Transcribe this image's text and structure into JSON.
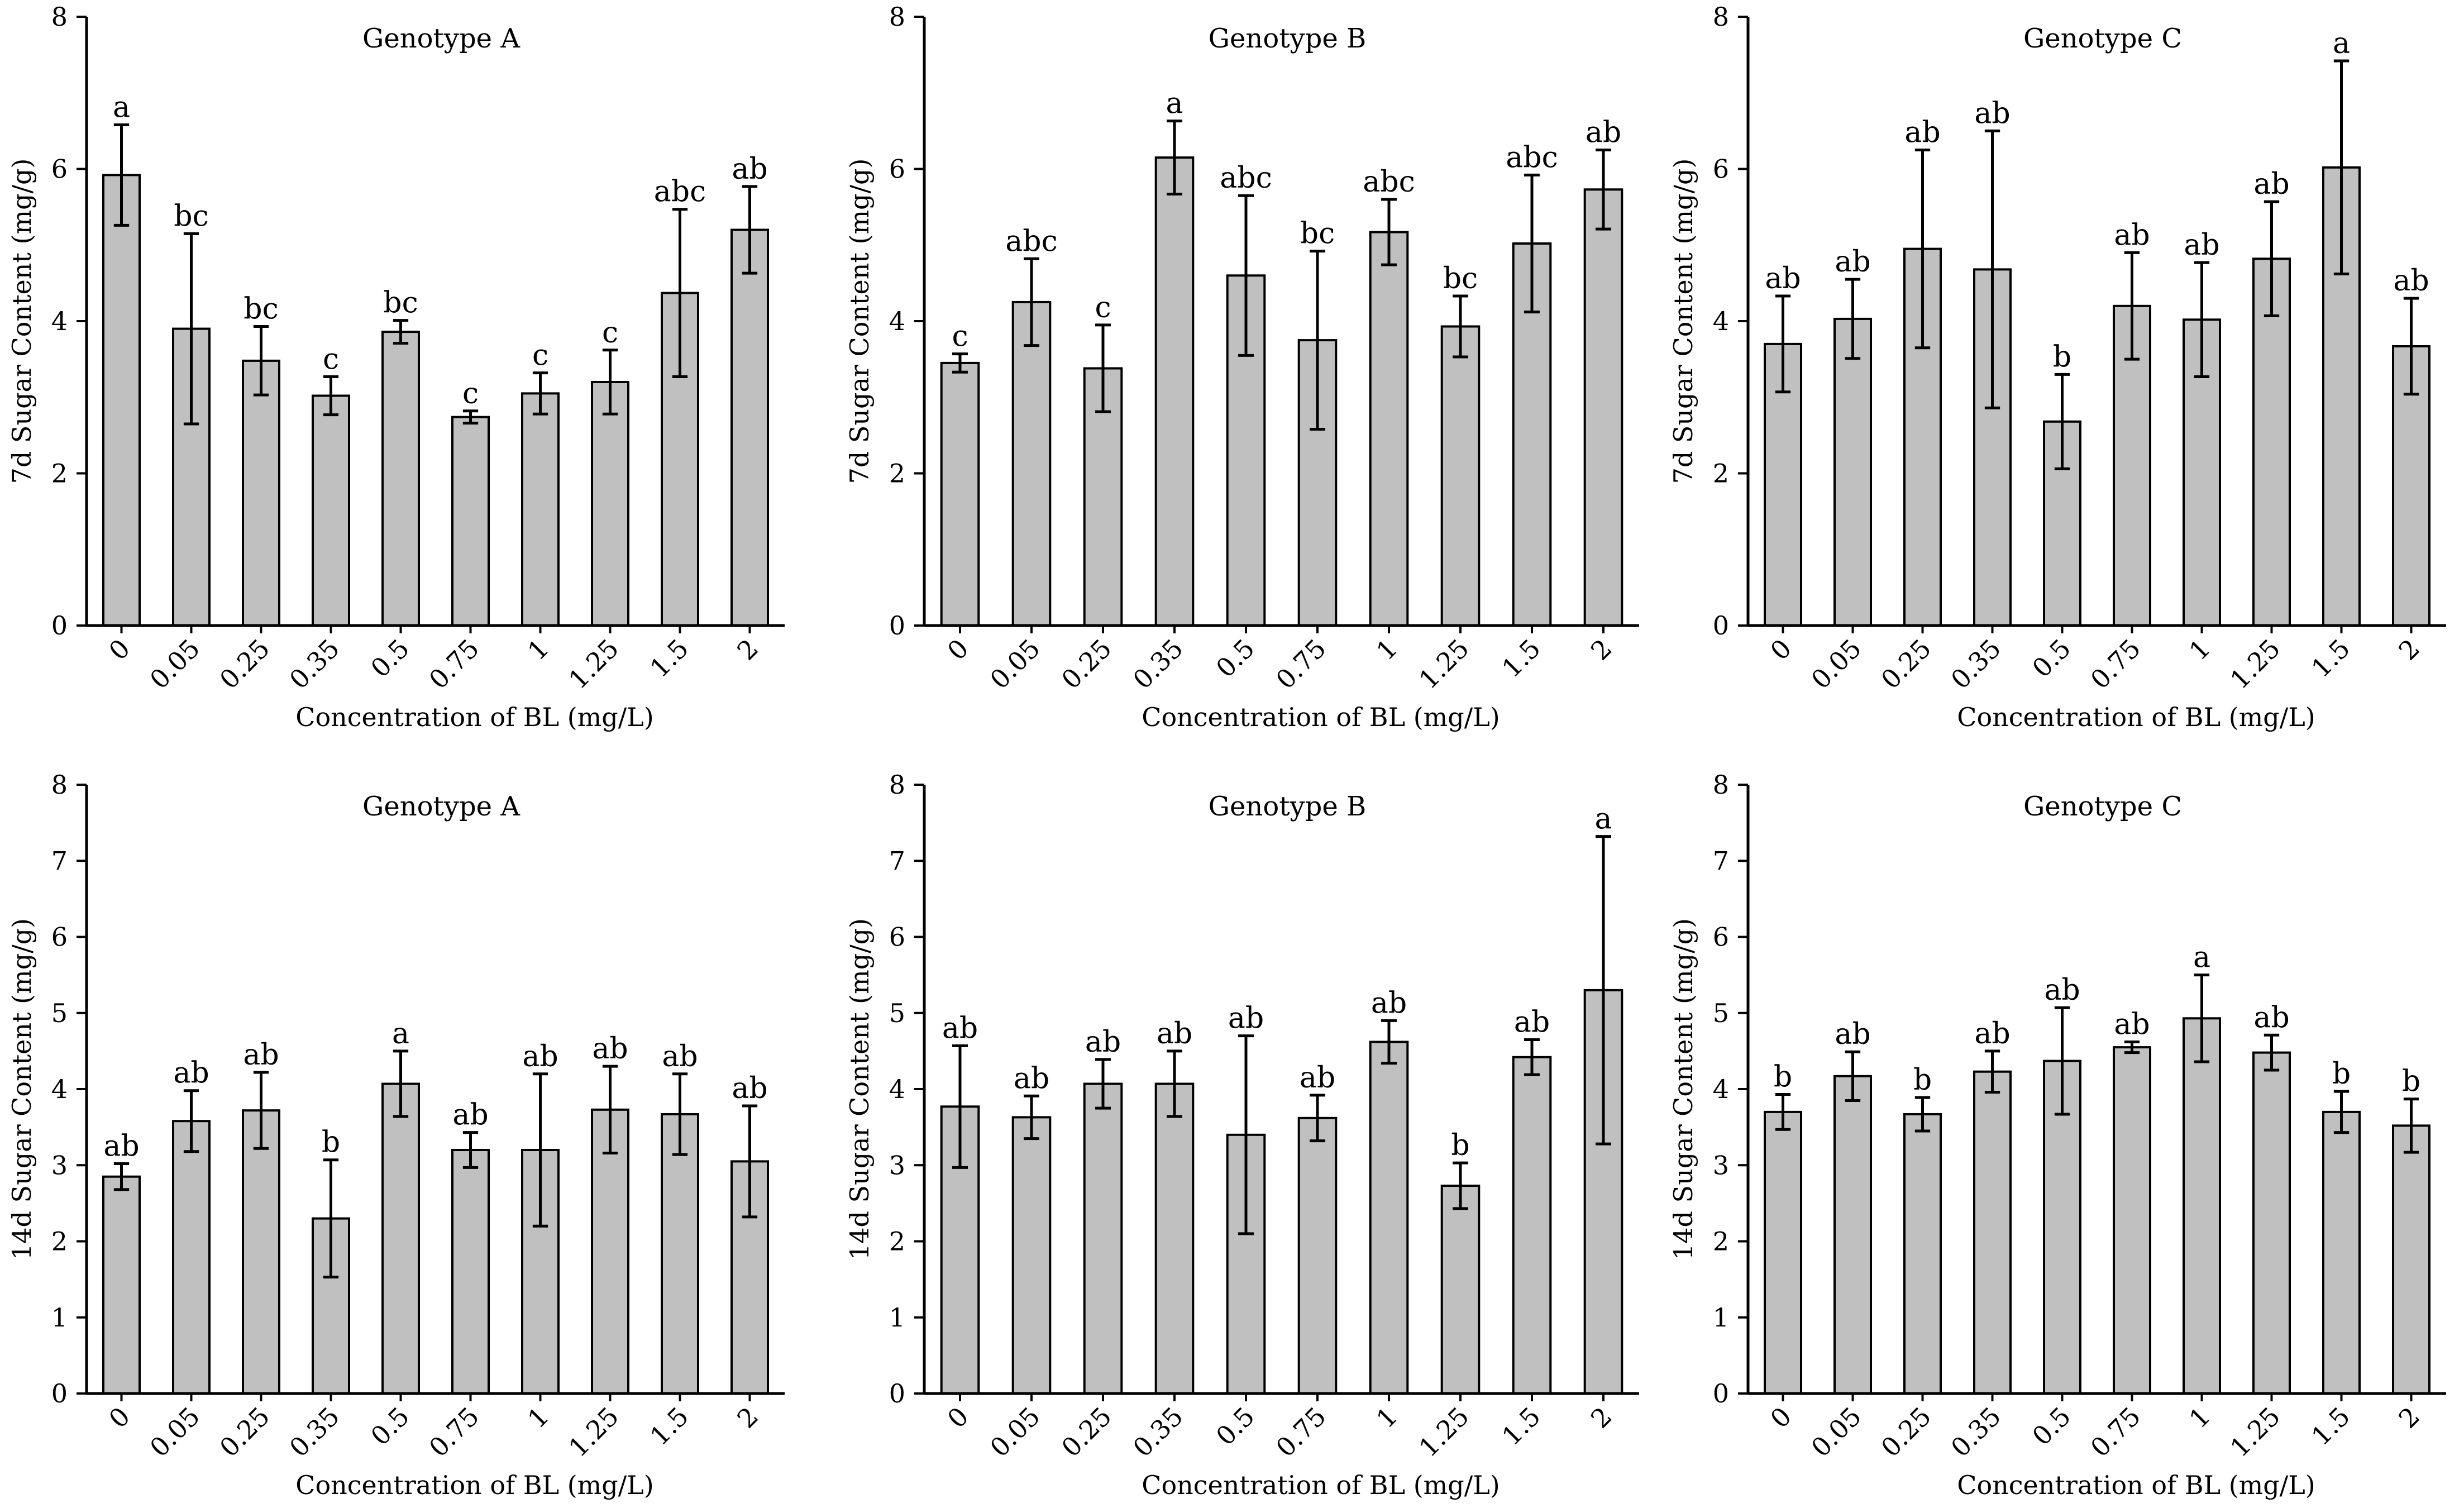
{
  "figure": {
    "chart_data": [
      {
        "type": "bar",
        "title": "Genotype A",
        "xlabel": "Concentration of BL (mg/L)",
        "ylabel": "7d Sugar Content (mg/g)",
        "ylim": [
          0,
          8
        ],
        "yticks": [
          0,
          2,
          4,
          6,
          8
        ],
        "categories": [
          "0",
          "0.05",
          "0.25",
          "0.35",
          "0.5",
          "0.75",
          "1",
          "1.25",
          "1.5",
          "2"
        ],
        "values": [
          5.92,
          3.9,
          3.48,
          3.02,
          3.86,
          2.74,
          3.05,
          3.2,
          4.37,
          5.2
        ],
        "errors": [
          0.66,
          1.25,
          0.45,
          0.25,
          0.15,
          0.08,
          0.27,
          0.42,
          1.1,
          0.57
        ],
        "letters": [
          "a",
          "bc",
          "bc",
          "c",
          "bc",
          "c",
          "c",
          "c",
          "abc",
          "ab"
        ]
      },
      {
        "type": "bar",
        "title": "Genotype B",
        "xlabel": "Concentration of BL (mg/L)",
        "ylabel": "7d Sugar Content (mg/g)",
        "ylim": [
          0,
          8
        ],
        "yticks": [
          0,
          2,
          4,
          6,
          8
        ],
        "categories": [
          "0",
          "0.05",
          "0.25",
          "0.35",
          "0.5",
          "0.75",
          "1",
          "1.25",
          "1.5",
          "2"
        ],
        "values": [
          3.45,
          4.25,
          3.38,
          6.15,
          4.6,
          3.75,
          5.17,
          3.93,
          5.02,
          5.73
        ],
        "errors": [
          0.12,
          0.57,
          0.57,
          0.48,
          1.05,
          1.17,
          0.43,
          0.4,
          0.9,
          0.52
        ],
        "letters": [
          "c",
          "abc",
          "c",
          "a",
          "abc",
          "bc",
          "abc",
          "bc",
          "abc",
          "ab"
        ]
      },
      {
        "type": "bar",
        "title": "Genotype C",
        "xlabel": "Concentration of BL (mg/L)",
        "ylabel": "7d Sugar Content (mg/g)",
        "ylim": [
          0,
          8
        ],
        "yticks": [
          0,
          2,
          4,
          6,
          8
        ],
        "categories": [
          "0",
          "0.05",
          "0.25",
          "0.35",
          "0.5",
          "0.75",
          "1",
          "1.25",
          "1.5",
          "2"
        ],
        "values": [
          3.7,
          4.03,
          4.95,
          4.68,
          2.68,
          4.2,
          4.02,
          4.82,
          6.02,
          3.67
        ],
        "errors": [
          0.63,
          0.52,
          1.3,
          1.82,
          0.62,
          0.7,
          0.75,
          0.75,
          1.4,
          0.63
        ],
        "letters": [
          "ab",
          "ab",
          "ab",
          "ab",
          "b",
          "ab",
          "ab",
          "ab",
          "a",
          "ab"
        ]
      },
      {
        "type": "bar",
        "title": "Genotype A",
        "xlabel": "Concentration of BL (mg/L)",
        "ylabel": "14d Sugar Content (mg/g)",
        "ylim": [
          0,
          8
        ],
        "yticks": [
          0,
          1,
          2,
          3,
          4,
          5,
          6,
          7,
          8
        ],
        "categories": [
          "0",
          "0.05",
          "0.25",
          "0.35",
          "0.5",
          "0.75",
          "1",
          "1.25",
          "1.5",
          "2"
        ],
        "values": [
          2.85,
          3.58,
          3.72,
          2.3,
          4.07,
          3.2,
          3.2,
          3.73,
          3.67,
          3.05
        ],
        "errors": [
          0.17,
          0.4,
          0.5,
          0.77,
          0.43,
          0.23,
          1.0,
          0.57,
          0.53,
          0.73
        ],
        "letters": [
          "ab",
          "ab",
          "ab",
          "b",
          "a",
          "ab",
          "ab",
          "ab",
          "ab",
          "ab"
        ]
      },
      {
        "type": "bar",
        "title": "Genotype B",
        "xlabel": "Concentration of BL (mg/L)",
        "ylabel": "14d Sugar Content (mg/g)",
        "ylim": [
          0,
          8
        ],
        "yticks": [
          0,
          1,
          2,
          3,
          4,
          5,
          6,
          7,
          8
        ],
        "categories": [
          "0",
          "0.05",
          "0.25",
          "0.35",
          "0.5",
          "0.75",
          "1",
          "1.25",
          "1.5",
          "2"
        ],
        "values": [
          3.77,
          3.63,
          4.07,
          4.07,
          3.4,
          3.62,
          4.62,
          2.73,
          4.42,
          5.3
        ],
        "errors": [
          0.8,
          0.28,
          0.32,
          0.43,
          1.3,
          0.3,
          0.28,
          0.3,
          0.23,
          2.02
        ],
        "letters": [
          "ab",
          "ab",
          "ab",
          "ab",
          "ab",
          "ab",
          "ab",
          "b",
          "ab",
          "a"
        ]
      },
      {
        "type": "bar",
        "title": "Genotype C",
        "xlabel": "Concentration of BL (mg/L)",
        "ylabel": "14d Sugar Content (mg/g)",
        "ylim": [
          0,
          8
        ],
        "yticks": [
          0,
          1,
          2,
          3,
          4,
          5,
          6,
          7,
          8
        ],
        "categories": [
          "0",
          "0.05",
          "0.25",
          "0.35",
          "0.5",
          "0.75",
          "1",
          "1.25",
          "1.5",
          "2"
        ],
        "values": [
          3.7,
          4.17,
          3.67,
          4.23,
          4.37,
          4.55,
          4.93,
          4.48,
          3.7,
          3.52
        ],
        "errors": [
          0.23,
          0.32,
          0.22,
          0.27,
          0.7,
          0.07,
          0.57,
          0.23,
          0.27,
          0.35
        ],
        "letters": [
          "b",
          "ab",
          "b",
          "ab",
          "ab",
          "ab",
          "a",
          "ab",
          "b",
          "b"
        ]
      }
    ]
  },
  "colors": {
    "bar_fill": "#c0c0c0",
    "stroke": "#000000",
    "background": "#ffffff"
  }
}
